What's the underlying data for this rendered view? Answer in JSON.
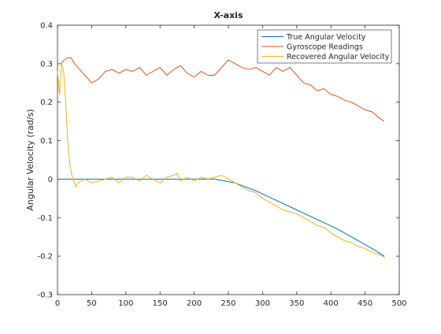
{
  "chart_data": {
    "type": "line",
    "title": "X-axis",
    "xlabel": "",
    "ylabel": "Angular Velocity (rad/s)",
    "xlim": [
      0,
      500
    ],
    "ylim": [
      -0.3,
      0.4
    ],
    "xticks": [
      0,
      50,
      100,
      150,
      200,
      250,
      300,
      350,
      400,
      450,
      500
    ],
    "yticks": [
      -0.3,
      -0.2,
      -0.1,
      0,
      0.1,
      0.2,
      0.3,
      0.4
    ],
    "xtick_labels": [
      "0",
      "50",
      "100",
      "150",
      "200",
      "250",
      "300",
      "350",
      "400",
      "450",
      "500"
    ],
    "ytick_labels": [
      "-0.3",
      "-0.2",
      "-0.1",
      "0",
      "0.1",
      "0.2",
      "0.3",
      "0.4"
    ],
    "grid": false,
    "legend_position": "top-right",
    "series": [
      {
        "name": "True Angular Velocity",
        "color": "#0072bd",
        "x": [
          0,
          50,
          100,
          150,
          200,
          230,
          260,
          290,
          320,
          350,
          380,
          410,
          440,
          460,
          478
        ],
        "y": [
          0,
          0,
          0,
          0,
          0,
          0,
          -0.01,
          -0.03,
          -0.055,
          -0.08,
          -0.105,
          -0.13,
          -0.16,
          -0.18,
          -0.2
        ]
      },
      {
        "name": "Gyroscope Readings",
        "color": "#d95319",
        "x": [
          0,
          5,
          10,
          15,
          20,
          25,
          30,
          40,
          50,
          60,
          70,
          80,
          90,
          100,
          110,
          120,
          130,
          140,
          150,
          160,
          170,
          180,
          190,
          200,
          210,
          220,
          230,
          240,
          245,
          250,
          260,
          270,
          280,
          290,
          300,
          310,
          320,
          330,
          340,
          350,
          360,
          370,
          380,
          390,
          400,
          410,
          420,
          430,
          440,
          450,
          460,
          470,
          478
        ],
        "y": [
          0.3,
          0.3,
          0.31,
          0.315,
          0.315,
          0.3,
          0.29,
          0.27,
          0.25,
          0.26,
          0.28,
          0.285,
          0.275,
          0.285,
          0.28,
          0.29,
          0.27,
          0.28,
          0.29,
          0.27,
          0.285,
          0.295,
          0.275,
          0.265,
          0.28,
          0.27,
          0.27,
          0.29,
          0.3,
          0.31,
          0.3,
          0.29,
          0.285,
          0.29,
          0.28,
          0.27,
          0.29,
          0.28,
          0.29,
          0.27,
          0.25,
          0.245,
          0.23,
          0.235,
          0.22,
          0.215,
          0.205,
          0.2,
          0.19,
          0.18,
          0.175,
          0.16,
          0.15
        ]
      },
      {
        "name": "Recovered Angular Velocity",
        "color": "#edb120",
        "x": [
          0,
          3,
          6,
          9,
          12,
          15,
          18,
          21,
          24,
          27,
          30,
          35,
          40,
          50,
          60,
          70,
          80,
          90,
          100,
          110,
          120,
          130,
          140,
          150,
          160,
          170,
          175,
          180,
          190,
          200,
          210,
          220,
          230,
          240,
          250,
          260,
          270,
          280,
          290,
          300,
          310,
          320,
          330,
          340,
          350,
          360,
          370,
          380,
          390,
          400,
          410,
          420,
          430,
          440,
          450,
          460,
          470,
          475,
          480
        ],
        "y": [
          0.28,
          0.22,
          0.3,
          0.28,
          0.2,
          0.1,
          0.04,
          0.01,
          -0.005,
          -0.02,
          -0.01,
          -0.005,
          0,
          -0.01,
          -0.005,
          0,
          0.005,
          -0.01,
          0.005,
          0.005,
          -0.005,
          0.01,
          0,
          -0.01,
          0.005,
          0.01,
          0.015,
          -0.005,
          0.005,
          -0.005,
          0.005,
          0,
          0.005,
          0.01,
          0,
          -0.01,
          -0.02,
          -0.03,
          -0.035,
          -0.05,
          -0.06,
          -0.07,
          -0.08,
          -0.085,
          -0.09,
          -0.1,
          -0.11,
          -0.12,
          -0.125,
          -0.14,
          -0.15,
          -0.16,
          -0.165,
          -0.175,
          -0.18,
          -0.19,
          -0.195,
          -0.2,
          -0.205
        ]
      }
    ]
  }
}
